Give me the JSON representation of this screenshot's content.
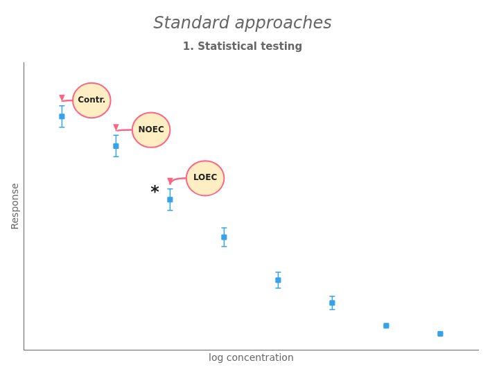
{
  "chart_data": {
    "type": "scatter",
    "title": "Standard approaches",
    "subtitle": "1. Statistical testing",
    "x_label": "log concentration",
    "y_label": "Response",
    "x": [
      1,
      2,
      3,
      4,
      5,
      6,
      7,
      8
    ],
    "values": [
      0.85,
      0.74,
      0.54,
      0.4,
      0.24,
      0.155,
      0.07,
      0.04
    ],
    "yerr": [
      0.04,
      0.04,
      0.04,
      0.035,
      0.03,
      0.025,
      0.0,
      0.0
    ],
    "marker": "square",
    "xlim": [
      0.3,
      8.7
    ],
    "ylim": [
      -0.02,
      1.05
    ],
    "tick_labels": false,
    "grid": false,
    "legend": false,
    "annotations": [
      {
        "text": "Contr.",
        "x": 1.55,
        "y": 0.91,
        "shape": "ellipse"
      },
      {
        "text": "NOEC",
        "x": 2.65,
        "y": 0.8,
        "shape": "ellipse"
      },
      {
        "text": "LOEC",
        "x": 3.65,
        "y": 0.62,
        "shape": "ellipse"
      },
      {
        "text": "*",
        "x": 2.72,
        "y": 0.565
      }
    ]
  }
}
